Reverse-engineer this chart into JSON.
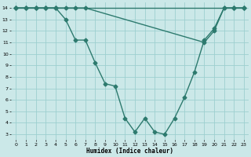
{
  "bg_color": "#cbe8e8",
  "grid_color": "#9dcfcf",
  "line_color": "#2d7a6e",
  "line_width": 1.0,
  "marker": "D",
  "marker_size": 2.5,
  "xlabel": "Humidex (Indice chaleur)",
  "xlim": [
    -0.5,
    23.5
  ],
  "ylim": [
    2.5,
    14.5
  ],
  "xticks": [
    0,
    1,
    2,
    3,
    4,
    5,
    6,
    7,
    8,
    9,
    10,
    11,
    12,
    13,
    14,
    15,
    16,
    17,
    18,
    19,
    20,
    21,
    22,
    23
  ],
  "yticks": [
    3,
    4,
    5,
    6,
    7,
    8,
    9,
    10,
    11,
    12,
    13,
    14
  ],
  "line1_x": [
    0,
    1,
    2,
    3,
    4,
    22,
    23
  ],
  "line1_y": [
    14,
    14,
    14,
    14,
    14,
    14,
    14
  ],
  "line2_x": [
    0,
    1,
    2,
    3,
    4,
    5,
    6,
    7,
    19,
    20,
    21,
    22,
    23
  ],
  "line2_y": [
    14,
    14,
    14,
    14,
    14,
    14,
    14,
    14,
    11,
    12,
    14,
    14,
    14
  ],
  "line3_x": [
    0,
    1,
    2,
    3,
    4,
    5,
    6,
    7,
    8,
    9,
    10,
    11,
    12,
    13,
    14,
    15,
    16,
    17,
    18,
    19,
    20,
    21,
    22,
    23
  ],
  "line3_y": [
    14,
    14,
    14,
    14,
    14,
    13,
    11.2,
    11.2,
    9.2,
    7.4,
    7.2,
    4.4,
    3.2,
    4.4,
    3.2,
    3.0,
    4.4,
    6.2,
    8.4,
    11.2,
    12.2,
    14.0,
    14,
    14
  ]
}
